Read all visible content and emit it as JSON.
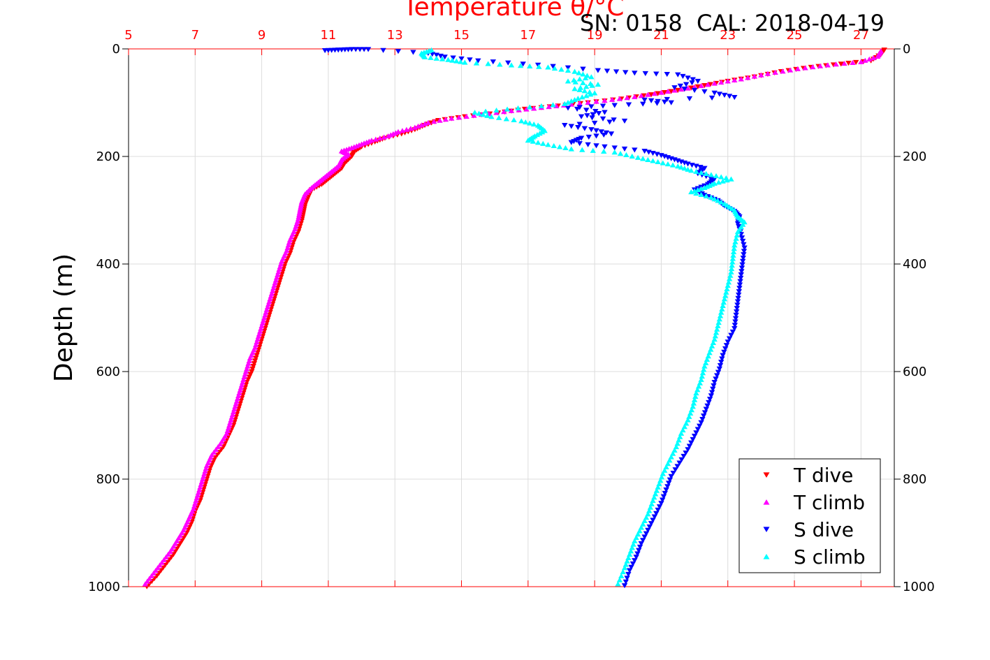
{
  "chart_data": {
    "type": "scatter",
    "title": "Temperature θ/°C",
    "header_text": "SN: 0158  CAL: 2018-04-19",
    "ylabel": "Depth (m)",
    "xlim": [
      5,
      28
    ],
    "ylim": [
      0,
      1000
    ],
    "y_reversed": true,
    "x_ticks": [
      5,
      7,
      9,
      11,
      13,
      15,
      17,
      19,
      21,
      23,
      25,
      27
    ],
    "y_ticks": [
      0,
      200,
      400,
      600,
      800,
      1000
    ],
    "grid": true,
    "legend_position": "bottom-right",
    "colors": {
      "top_axis": "#ff0000",
      "grid": "#dcdcdc",
      "axis": "#000000"
    },
    "series": [
      {
        "name": "T dive",
        "marker": "triangle-down",
        "color": "#ff0000",
        "points": [
          [
            27.7,
            2
          ],
          [
            27.6,
            10
          ],
          [
            27.3,
            22
          ],
          [
            26.4,
            28
          ],
          [
            25.5,
            34
          ],
          [
            24.6,
            42
          ],
          [
            23.8,
            52
          ],
          [
            23.0,
            60
          ],
          [
            22.3,
            68
          ],
          [
            21.5,
            77
          ],
          [
            20.7,
            85
          ],
          [
            19.8,
            93
          ],
          [
            18.8,
            100
          ],
          [
            17.9,
            106
          ],
          [
            16.9,
            112
          ],
          [
            16.1,
            119
          ],
          [
            15.1,
            126
          ],
          [
            14.3,
            133
          ],
          [
            13.9,
            142
          ],
          [
            13.6,
            150
          ],
          [
            13.2,
            158
          ],
          [
            12.7,
            166
          ],
          [
            12.4,
            173
          ],
          [
            12.0,
            182
          ],
          [
            11.8,
            190
          ],
          [
            11.7,
            200
          ],
          [
            11.5,
            212
          ],
          [
            11.4,
            222
          ],
          [
            11.2,
            232
          ],
          [
            11.0,
            242
          ],
          [
            10.8,
            252
          ],
          [
            10.5,
            262
          ],
          [
            10.4,
            275
          ],
          [
            10.3,
            290
          ],
          [
            10.25,
            305
          ],
          [
            10.2,
            320
          ],
          [
            10.1,
            340
          ],
          [
            9.95,
            360
          ],
          [
            9.85,
            380
          ],
          [
            9.7,
            400
          ],
          [
            9.6,
            420
          ],
          [
            9.5,
            440
          ],
          [
            9.4,
            460
          ],
          [
            9.3,
            480
          ],
          [
            9.2,
            500
          ],
          [
            9.1,
            520
          ],
          [
            9.0,
            540
          ],
          [
            8.9,
            560
          ],
          [
            8.8,
            580
          ],
          [
            8.7,
            600
          ],
          [
            8.55,
            620
          ],
          [
            8.45,
            640
          ],
          [
            8.35,
            660
          ],
          [
            8.25,
            680
          ],
          [
            8.15,
            700
          ],
          [
            8.0,
            720
          ],
          [
            7.85,
            740
          ],
          [
            7.6,
            760
          ],
          [
            7.45,
            780
          ],
          [
            7.35,
            800
          ],
          [
            7.25,
            820
          ],
          [
            7.15,
            840
          ],
          [
            7.0,
            860
          ],
          [
            6.9,
            880
          ],
          [
            6.75,
            900
          ],
          [
            6.55,
            920
          ],
          [
            6.35,
            940
          ],
          [
            6.1,
            960
          ],
          [
            5.85,
            980
          ],
          [
            5.55,
            1000
          ]
        ]
      },
      {
        "name": "T climb",
        "marker": "triangle-up",
        "color": "#ff00ff",
        "points": [
          [
            27.6,
            4
          ],
          [
            27.5,
            14
          ],
          [
            27.0,
            24
          ],
          [
            26.0,
            30
          ],
          [
            25.1,
            37
          ],
          [
            24.2,
            46
          ],
          [
            23.4,
            56
          ],
          [
            22.6,
            64
          ],
          [
            21.8,
            73
          ],
          [
            21.0,
            81
          ],
          [
            20.2,
            89
          ],
          [
            19.3,
            96
          ],
          [
            18.3,
            103
          ],
          [
            17.4,
            109
          ],
          [
            16.5,
            115
          ],
          [
            15.6,
            122
          ],
          [
            14.7,
            129
          ],
          [
            14.0,
            137
          ],
          [
            13.6,
            146
          ],
          [
            13.1,
            154
          ],
          [
            12.8,
            162
          ],
          [
            12.3,
            170
          ],
          [
            12.0,
            177
          ],
          [
            11.7,
            184
          ],
          [
            11.4,
            190
          ],
          [
            11.6,
            196
          ],
          [
            11.4,
            206
          ],
          [
            11.3,
            218
          ],
          [
            11.1,
            228
          ],
          [
            10.9,
            238
          ],
          [
            10.7,
            248
          ],
          [
            10.5,
            258
          ],
          [
            10.3,
            270
          ],
          [
            10.2,
            285
          ],
          [
            10.15,
            300
          ],
          [
            10.1,
            316
          ],
          [
            10.0,
            335
          ],
          [
            9.85,
            355
          ],
          [
            9.75,
            375
          ],
          [
            9.6,
            395
          ],
          [
            9.5,
            415
          ],
          [
            9.4,
            435
          ],
          [
            9.3,
            455
          ],
          [
            9.2,
            475
          ],
          [
            9.1,
            495
          ],
          [
            9.0,
            515
          ],
          [
            8.9,
            535
          ],
          [
            8.8,
            555
          ],
          [
            8.65,
            575
          ],
          [
            8.55,
            595
          ],
          [
            8.45,
            615
          ],
          [
            8.35,
            635
          ],
          [
            8.25,
            655
          ],
          [
            8.15,
            675
          ],
          [
            8.05,
            695
          ],
          [
            7.95,
            715
          ],
          [
            7.75,
            735
          ],
          [
            7.5,
            755
          ],
          [
            7.35,
            775
          ],
          [
            7.25,
            795
          ],
          [
            7.15,
            815
          ],
          [
            7.05,
            835
          ],
          [
            6.95,
            855
          ],
          [
            6.8,
            875
          ],
          [
            6.65,
            895
          ],
          [
            6.45,
            915
          ],
          [
            6.25,
            935
          ],
          [
            6.0,
            955
          ],
          [
            5.75,
            975
          ],
          [
            5.5,
            995
          ]
        ]
      },
      {
        "name": "S dive",
        "marker": "triangle-down",
        "color": "#0000ff",
        "points": [
          [
            10.9,
            3
          ],
          [
            11.3,
            2
          ],
          [
            11.7,
            1
          ],
          [
            12.2,
            1
          ],
          [
            14.0,
            8
          ],
          [
            14.5,
            15
          ],
          [
            15.5,
            22
          ],
          [
            17.3,
            30
          ],
          [
            19.1,
            40
          ],
          [
            20.2,
            45
          ],
          [
            21.5,
            48
          ],
          [
            22.1,
            60
          ],
          [
            21.4,
            72
          ],
          [
            22.6,
            82
          ],
          [
            23.2,
            90
          ],
          [
            20.5,
            95
          ],
          [
            21.3,
            100
          ],
          [
            19.6,
            105
          ],
          [
            18.2,
            110
          ],
          [
            19.3,
            118
          ],
          [
            18.6,
            126
          ],
          [
            19.9,
            134
          ],
          [
            18.1,
            142
          ],
          [
            18.9,
            150
          ],
          [
            19.5,
            158
          ],
          [
            18.6,
            166
          ],
          [
            18.3,
            174
          ],
          [
            19.3,
            182
          ],
          [
            20.5,
            190
          ],
          [
            21.0,
            198
          ],
          [
            21.4,
            206
          ],
          [
            21.8,
            214
          ],
          [
            22.3,
            222
          ],
          [
            22.1,
            232
          ],
          [
            22.6,
            242
          ],
          [
            22.4,
            252
          ],
          [
            22.0,
            262
          ],
          [
            22.3,
            272
          ],
          [
            22.7,
            282
          ],
          [
            22.9,
            292
          ],
          [
            23.2,
            302
          ],
          [
            23.35,
            312
          ],
          [
            23.3,
            325
          ],
          [
            23.4,
            345
          ],
          [
            23.5,
            370
          ],
          [
            23.45,
            395
          ],
          [
            23.4,
            420
          ],
          [
            23.35,
            445
          ],
          [
            23.3,
            470
          ],
          [
            23.25,
            495
          ],
          [
            23.2,
            520
          ],
          [
            23.0,
            545
          ],
          [
            22.85,
            570
          ],
          [
            22.75,
            595
          ],
          [
            22.6,
            620
          ],
          [
            22.5,
            645
          ],
          [
            22.35,
            670
          ],
          [
            22.2,
            695
          ],
          [
            22.0,
            720
          ],
          [
            21.8,
            745
          ],
          [
            21.55,
            770
          ],
          [
            21.3,
            795
          ],
          [
            21.15,
            820
          ],
          [
            21.0,
            845
          ],
          [
            20.8,
            870
          ],
          [
            20.6,
            895
          ],
          [
            20.4,
            920
          ],
          [
            20.25,
            945
          ],
          [
            20.05,
            970
          ],
          [
            19.9,
            998
          ]
        ]
      },
      {
        "name": "S climb",
        "marker": "triangle-up",
        "color": "#00ffff",
        "points": [
          [
            14.1,
            2
          ],
          [
            13.8,
            8
          ],
          [
            13.9,
            15
          ],
          [
            14.6,
            20
          ],
          [
            15.1,
            25
          ],
          [
            16.5,
            30
          ],
          [
            17.6,
            34
          ],
          [
            18.4,
            42
          ],
          [
            18.9,
            52
          ],
          [
            18.2,
            60
          ],
          [
            19.1,
            66
          ],
          [
            18.4,
            74
          ],
          [
            19.0,
            82
          ],
          [
            18.5,
            92
          ],
          [
            18.1,
            102
          ],
          [
            16.7,
            110
          ],
          [
            15.4,
            118
          ],
          [
            15.9,
            126
          ],
          [
            16.8,
            134
          ],
          [
            17.3,
            142
          ],
          [
            17.5,
            152
          ],
          [
            17.2,
            162
          ],
          [
            17.0,
            170
          ],
          [
            17.6,
            178
          ],
          [
            18.3,
            186
          ],
          [
            19.6,
            192
          ],
          [
            20.3,
            202
          ],
          [
            20.9,
            210
          ],
          [
            21.5,
            218
          ],
          [
            21.9,
            226
          ],
          [
            22.5,
            234
          ],
          [
            23.1,
            242
          ],
          [
            22.6,
            250
          ],
          [
            22.3,
            258
          ],
          [
            21.9,
            266
          ],
          [
            22.5,
            276
          ],
          [
            22.9,
            288
          ],
          [
            23.2,
            300
          ],
          [
            23.3,
            312
          ],
          [
            23.5,
            322
          ],
          [
            23.3,
            340
          ],
          [
            23.2,
            365
          ],
          [
            23.15,
            390
          ],
          [
            23.1,
            415
          ],
          [
            23.0,
            440
          ],
          [
            22.9,
            465
          ],
          [
            22.8,
            490
          ],
          [
            22.7,
            515
          ],
          [
            22.6,
            540
          ],
          [
            22.45,
            565
          ],
          [
            22.3,
            590
          ],
          [
            22.2,
            615
          ],
          [
            22.05,
            640
          ],
          [
            21.95,
            665
          ],
          [
            21.8,
            690
          ],
          [
            21.6,
            715
          ],
          [
            21.45,
            740
          ],
          [
            21.25,
            765
          ],
          [
            21.05,
            790
          ],
          [
            20.9,
            815
          ],
          [
            20.75,
            840
          ],
          [
            20.6,
            865
          ],
          [
            20.4,
            890
          ],
          [
            20.2,
            915
          ],
          [
            20.05,
            940
          ],
          [
            19.9,
            965
          ],
          [
            19.7,
            995
          ]
        ]
      }
    ]
  }
}
